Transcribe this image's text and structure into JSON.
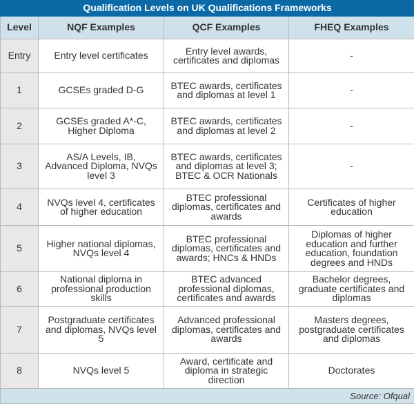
{
  "title": "Qualification Levels on UK Qualifications Frameworks",
  "columns": [
    "Level",
    "NQF Examples",
    "QCF Examples",
    "FHEQ Examples"
  ],
  "rows": [
    {
      "level": "Entry",
      "nqf": "Entry level certificates",
      "qcf": "Entry level awards, certificates and diplomas",
      "fheq": "-"
    },
    {
      "level": "1",
      "nqf": "GCSEs graded D-G",
      "qcf": "BTEC awards, certificates and diplomas at level 1",
      "fheq": "-"
    },
    {
      "level": "2",
      "nqf": "GCSEs graded A*-C, Higher Diploma",
      "qcf": "BTEC awards, certificates and diplomas at level 2",
      "fheq": "-"
    },
    {
      "level": "3",
      "nqf": "AS/A Levels, IB, Advanced Diploma, NVQs level 3",
      "qcf": "BTEC awards, certificates and diplomas at level 3; BTEC & OCR Nationals",
      "fheq": "-"
    },
    {
      "level": "4",
      "nqf": "NVQs level 4, certificates of higher education",
      "qcf": "BTEC professional diplomas, certificates and awards",
      "fheq": "Certificates of higher education"
    },
    {
      "level": "5",
      "nqf": "Higher national diplomas, NVQs level 4",
      "qcf": "BTEC professional diplomas, certificates and awards; HNCs & HNDs",
      "fheq": "Diplomas of higher education and further education, foundation degrees and HNDs"
    },
    {
      "level": "6",
      "nqf": "National diploma in professional production skills",
      "qcf": "BTEC advanced professional diplomas, certificates and awards",
      "fheq": "Bachelor degrees, graduate certificates and diplomas"
    },
    {
      "level": "7",
      "nqf": "Postgraduate certificates and diplomas, NVQs level 5",
      "qcf": "Advanced professional diplomas, certificates and awards",
      "fheq": "Masters degrees, postgraduate certificates and diplomas"
    },
    {
      "level": "8",
      "nqf": "NVQs level 5",
      "qcf": "Award, certificate and diploma in strategic direction",
      "fheq": "Doctorates"
    }
  ],
  "source": "Source: Ofqual",
  "colors": {
    "title_bar": "#0b6aa6",
    "header": "#cfe1eb",
    "level_column": "#e9e7e7"
  }
}
